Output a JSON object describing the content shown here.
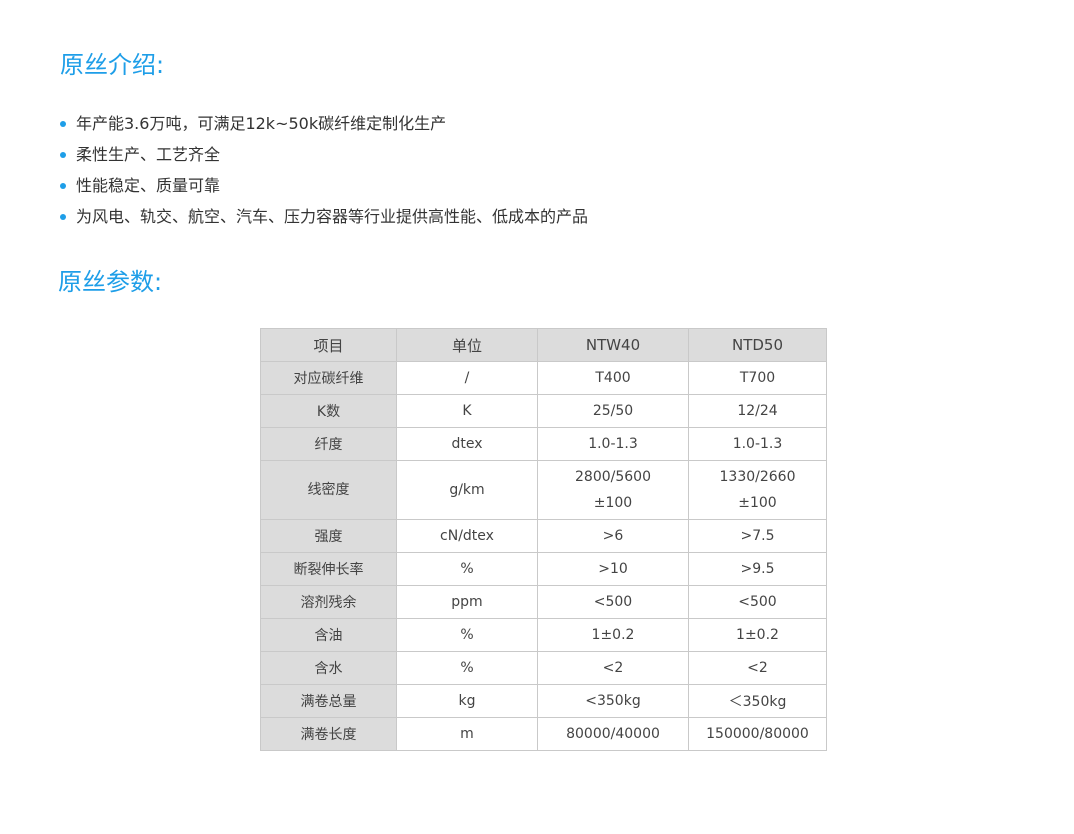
{
  "intro": {
    "title": "原丝介绍:",
    "bullets": [
      "年产能3.6万吨，可满足12k~50k碳纤维定制化生产",
      "柔性生产、工艺齐全",
      "性能稳定、质量可靠",
      "为风电、轨交、航空、汽车、压力容器等行业提供高性能、低成本的产品"
    ]
  },
  "params": {
    "title": "原丝参数:",
    "headers": [
      "项目",
      "单位",
      "NTW40",
      "NTD50"
    ],
    "rows": [
      [
        "对应碳纤维",
        "/",
        "T400",
        "T700"
      ],
      [
        "K数",
        "K",
        "25/50",
        "12/24"
      ],
      [
        "纤度",
        "dtex",
        "1.0-1.3",
        "1.0-1.3"
      ],
      [
        "线密度",
        "g/km",
        "2800/5600",
        "1330/2660"
      ],
      [
        "强度",
        "cN/dtex",
        ">6",
        ">7.5"
      ],
      [
        "断裂伸长率",
        "%",
        ">10",
        ">9.5"
      ],
      [
        "溶剂残余",
        "ppm",
        "<500",
        "<500"
      ],
      [
        "含油",
        "%",
        "1±0.2",
        "1±0.2"
      ],
      [
        "含水",
        "%",
        "<2",
        "<2"
      ],
      [
        "满卷总量",
        "kg",
        "<350kg",
        "＜350kg"
      ],
      [
        "满卷长度",
        "m",
        "80000/40000",
        "150000/80000"
      ]
    ],
    "linear_density_tolerance": [
      "±100",
      "±100"
    ]
  },
  "colors": {
    "accent": "#1e9ee8",
    "header_bg": "#dcdcdc",
    "border": "#c9c9c9"
  }
}
